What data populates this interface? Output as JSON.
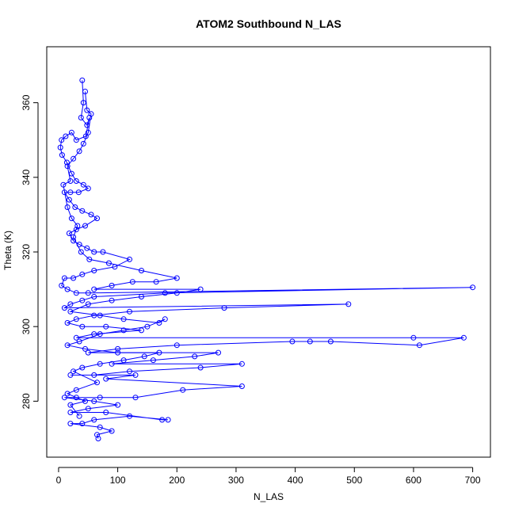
{
  "chart_data": {
    "type": "line",
    "title": "ATOM2 Southbound N_LAS",
    "xlabel": "N_LAS",
    "ylabel": "Theta (K)",
    "xlim": [
      -20,
      730
    ],
    "ylim": [
      265,
      375
    ],
    "xticks": [
      0,
      100,
      200,
      300,
      400,
      500,
      600,
      700
    ],
    "yticks": [
      280,
      300,
      320,
      340,
      360
    ],
    "grid": false,
    "legend": "none",
    "series_color": "#0000ff",
    "marker": "open-circle",
    "series": [
      {
        "values": [
          [
            40,
            366
          ],
          [
            42,
            360
          ],
          [
            38,
            356
          ],
          [
            48,
            354
          ],
          [
            52,
            356
          ],
          [
            46,
            351
          ],
          [
            30,
            350
          ],
          [
            22,
            352
          ],
          [
            12,
            351
          ],
          [
            5,
            350
          ],
          [
            3,
            348
          ],
          [
            6,
            346
          ],
          [
            14,
            344
          ],
          [
            22,
            341
          ],
          [
            30,
            339
          ],
          [
            42,
            338
          ],
          [
            50,
            337
          ],
          [
            34,
            336
          ],
          [
            20,
            336
          ],
          [
            10,
            336
          ],
          [
            18,
            334
          ],
          [
            28,
            332
          ],
          [
            40,
            331
          ],
          [
            55,
            330
          ],
          [
            65,
            329
          ],
          [
            45,
            327
          ],
          [
            30,
            326
          ],
          [
            18,
            325
          ],
          [
            25,
            323
          ],
          [
            35,
            322
          ],
          [
            48,
            321
          ],
          [
            60,
            320
          ],
          [
            75,
            320
          ],
          [
            120,
            318
          ],
          [
            95,
            316
          ],
          [
            60,
            315
          ],
          [
            40,
            314
          ],
          [
            25,
            313
          ],
          [
            10,
            313
          ],
          [
            5,
            311
          ],
          [
            15,
            310
          ],
          [
            30,
            309
          ],
          [
            50,
            309
          ],
          [
            700,
            310.5
          ],
          [
            180,
            309
          ],
          [
            60,
            308
          ],
          [
            40,
            307
          ],
          [
            20,
            306
          ],
          [
            10,
            305
          ],
          [
            490,
            306
          ],
          [
            280,
            305
          ],
          [
            120,
            304
          ],
          [
            60,
            303
          ],
          [
            30,
            302
          ],
          [
            15,
            301
          ],
          [
            40,
            300
          ],
          [
            80,
            300
          ],
          [
            140,
            299
          ],
          [
            60,
            298
          ],
          [
            30,
            297
          ],
          [
            600,
            297
          ],
          [
            685,
            297
          ],
          [
            610,
            295
          ],
          [
            460,
            296
          ],
          [
            425,
            296
          ],
          [
            395,
            296
          ],
          [
            200,
            295
          ],
          [
            100,
            294
          ],
          [
            50,
            293
          ],
          [
            270,
            293
          ],
          [
            230,
            292
          ],
          [
            160,
            291
          ],
          [
            90,
            290
          ],
          [
            310,
            290
          ],
          [
            240,
            289
          ],
          [
            120,
            288
          ],
          [
            60,
            287
          ],
          [
            20,
            287
          ],
          [
            130,
            287
          ],
          [
            80,
            286
          ],
          [
            310,
            284
          ],
          [
            210,
            283
          ],
          [
            130,
            281
          ],
          [
            70,
            281
          ],
          [
            30,
            281
          ],
          [
            10,
            281
          ],
          [
            60,
            280
          ],
          [
            100,
            279
          ],
          [
            50,
            278
          ],
          [
            20,
            277
          ],
          [
            80,
            277
          ],
          [
            175,
            275
          ],
          [
            185,
            275
          ],
          [
            120,
            276
          ],
          [
            60,
            275
          ],
          [
            40,
            274
          ],
          [
            20,
            274
          ],
          [
            70,
            273
          ],
          [
            90,
            272
          ],
          [
            65,
            271
          ],
          [
            67,
            270
          ]
        ]
      },
      {
        "values": [
          [
            45,
            363
          ],
          [
            48,
            358
          ],
          [
            55,
            357
          ],
          [
            50,
            352
          ],
          [
            42,
            349
          ],
          [
            35,
            347
          ],
          [
            25,
            345
          ],
          [
            15,
            343
          ],
          [
            20,
            339
          ],
          [
            8,
            338
          ],
          [
            15,
            332
          ],
          [
            22,
            329
          ],
          [
            32,
            327
          ],
          [
            25,
            324
          ],
          [
            38,
            320
          ],
          [
            52,
            318
          ],
          [
            85,
            317
          ],
          [
            140,
            315
          ],
          [
            200,
            313
          ],
          [
            165,
            312
          ],
          [
            125,
            312
          ],
          [
            90,
            311
          ],
          [
            60,
            310
          ],
          [
            240,
            310
          ],
          [
            200,
            309
          ],
          [
            140,
            308
          ],
          [
            90,
            307
          ],
          [
            50,
            306
          ],
          [
            20,
            304
          ],
          [
            70,
            303
          ],
          [
            110,
            302
          ],
          [
            170,
            301
          ],
          [
            180,
            302
          ],
          [
            150,
            300
          ],
          [
            110,
            299
          ],
          [
            70,
            298
          ],
          [
            35,
            296
          ],
          [
            15,
            295
          ],
          [
            45,
            294
          ],
          [
            100,
            293
          ],
          [
            170,
            293
          ],
          [
            145,
            292
          ],
          [
            110,
            291
          ],
          [
            70,
            290
          ],
          [
            40,
            289
          ],
          [
            25,
            288
          ],
          [
            65,
            285
          ],
          [
            30,
            283
          ],
          [
            15,
            282
          ],
          [
            45,
            280
          ],
          [
            20,
            279
          ],
          [
            35,
            276
          ]
        ]
      }
    ]
  }
}
